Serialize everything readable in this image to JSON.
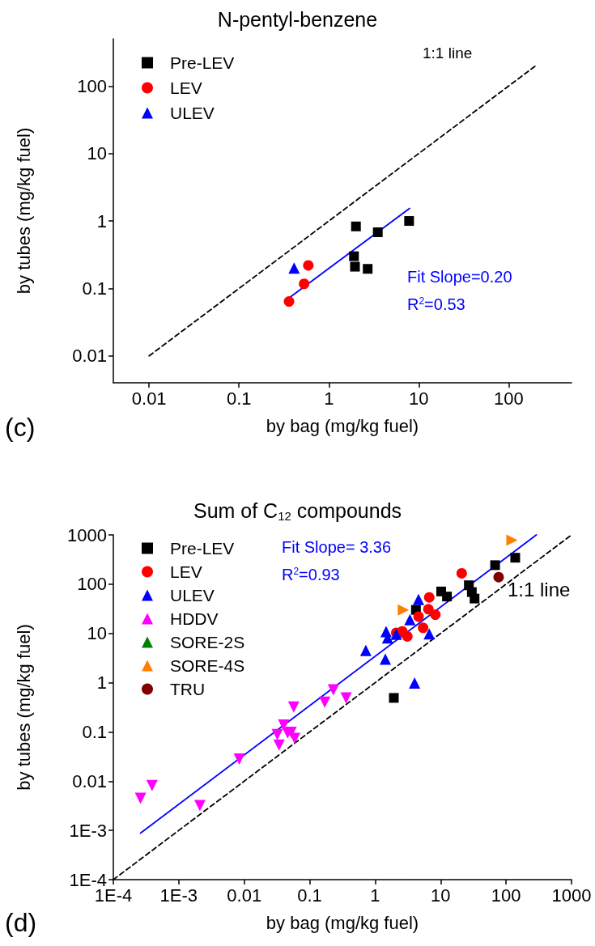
{
  "chart_data": [
    {
      "type": "scatter",
      "title": "N-pentyl-benzene",
      "xlabel": "by bag (mg/kg fuel)",
      "ylabel": "by tubes (mg/kg fuel)",
      "log": "xy",
      "legend": "top left",
      "xlim": [
        0.004,
        500
      ],
      "ylim": [
        0.004,
        500
      ],
      "xticks": [
        0.01,
        0.1,
        1,
        10,
        100
      ],
      "yticks": [
        0.01,
        0.1,
        1,
        10,
        100
      ],
      "annotations": [
        "(c)",
        "1:1 line",
        "Fit Slope=0.20",
        "R$^{2}$=0.53"
      ],
      "series": [
        {
          "name": "Pre-LEV",
          "type": "scatter",
          "marker": "square",
          "color": "#000000",
          "x": [
            2.0,
            3.5,
            7.8,
            1.9,
            1.95,
            2.7
          ],
          "values": [
            0.83,
            0.68,
            1.0,
            0.3,
            0.21,
            0.195
          ]
        },
        {
          "name": "LEV",
          "type": "scatter",
          "marker": "circle",
          "color": "#ff0000",
          "x": [
            0.36,
            0.53,
            0.59
          ],
          "values": [
            0.064,
            0.117,
            0.22
          ]
        },
        {
          "name": "ULEV",
          "type": "scatter",
          "marker": "triangle",
          "color": "#0000ff",
          "x": [
            0.41
          ],
          "values": [
            0.2
          ]
        },
        {
          "type": "line",
          "marker": "none",
          "line_style": "dashed",
          "color": "#000000",
          "x": [
            0.01,
            200
          ],
          "values": [
            0.01,
            200
          ]
        },
        {
          "type": "line",
          "marker": "none",
          "line_style": "solid",
          "color": "#0000ff",
          "x": [
            0.36,
            7.9
          ],
          "values": [
            0.072,
            1.54
          ]
        }
      ]
    },
    {
      "type": "scatter",
      "title": "Sum of C$_{12}$ compounds",
      "xlabel": "by bag (mg/kg fuel)",
      "ylabel": "by tubes (mg/kg fuel)",
      "log": "xy",
      "legend": "top left",
      "xlim": [
        0.0001,
        1000
      ],
      "ylim": [
        0.0001,
        1000
      ],
      "xticks": [
        {
          "value": 0.0001,
          "label": "1E-4"
        },
        {
          "value": 0.001,
          "label": "1E-3"
        },
        0.01,
        0.1,
        1,
        10,
        100,
        1000
      ],
      "yticks": [
        {
          "value": 0.0001,
          "label": "1E-4"
        },
        {
          "value": 0.001,
          "label": "1E-3"
        },
        0.01,
        0.1,
        1,
        10,
        100,
        1000
      ],
      "annotations": [
        "(d)",
        "Fit Slope= 3.36",
        "R$^{2}$=0.93",
        "1:1 line"
      ],
      "series": [
        {
          "name": "Pre-LEV",
          "type": "scatter",
          "marker": "square",
          "color": "#000000",
          "x": [
            138,
            68,
            27,
            30,
            33,
            10.2,
            12.5,
            4.2,
            1.93
          ],
          "values": [
            344,
            243,
            95,
            69,
            51,
            71,
            56,
            30,
            0.49
          ]
        },
        {
          "name": "LEV",
          "type": "scatter",
          "marker": "circle",
          "color": "#ff0000",
          "x": [
            21,
            6.7,
            6.5,
            8.3,
            4.6,
            5.4,
            2.1,
            2.6,
            3.1
          ],
          "values": [
            166,
            54,
            31,
            24,
            22,
            13,
            10.3,
            11,
            8.7
          ]
        },
        {
          "name": "ULEV",
          "type": "scatter",
          "marker": "triangle",
          "color": "#0000ff",
          "x": [
            4.6,
            3.4,
            1.47,
            1.55,
            2.1,
            6.7,
            0.72,
            1.43,
            4.0
          ],
          "values": [
            49,
            19,
            10.9,
            8.1,
            9.6,
            9.8,
            4.5,
            3.0,
            0.98
          ]
        },
        {
          "name": "HDDV",
          "type": "scatter",
          "marker": "triangle-down",
          "color": "#ff00ff",
          "x": [
            0.00026,
            0.00039,
            0.0021,
            0.0084,
            0.032,
            0.034,
            0.04,
            0.046,
            0.052,
            0.059,
            0.057,
            0.17,
            0.23,
            0.36
          ],
          "values": [
            0.0045,
            0.0081,
            0.0032,
            0.028,
            0.088,
            0.054,
            0.137,
            0.095,
            0.098,
            0.074,
            0.32,
            0.4,
            0.71,
            0.49
          ]
        },
        {
          "name": "SORE-2S",
          "type": "scatter",
          "marker": "triangle-left",
          "color": "#008000"
        },
        {
          "name": "SORE-4S",
          "type": "scatter",
          "marker": "triangle-right",
          "color": "#ff8000",
          "x": [
            2.7,
            123
          ],
          "values": [
            30,
            780
          ]
        },
        {
          "name": "TRU",
          "type": "scatter",
          "color": "#800000",
          "x": [
            77
          ],
          "values": [
            139
          ]
        },
        {
          "type": "line",
          "marker": "none",
          "line_style": "dashed",
          "color": "#000000",
          "x": [
            0.0001,
            1000
          ],
          "values": [
            0.0001,
            1000
          ]
        },
        {
          "type": "line",
          "marker": "none",
          "line_style": "solid",
          "color": "#0000ff",
          "x": [
            0.00026,
            290
          ],
          "values": [
            0.00088,
            1000
          ]
        }
      ]
    }
  ]
}
